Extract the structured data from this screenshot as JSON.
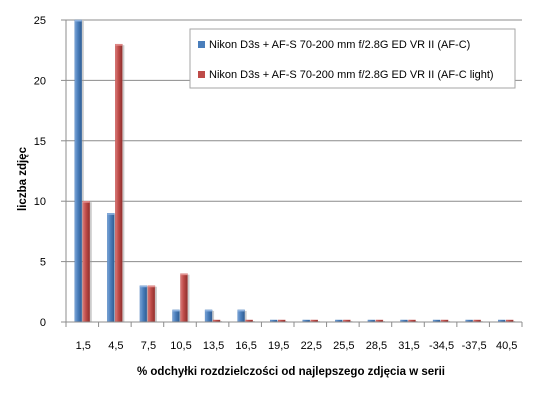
{
  "chart_data": {
    "type": "bar",
    "xlabel": "% odchyłki  rozdzielczości  od najlepszego  zdjęcia  w serii",
    "ylabel": "liczba zdjęc",
    "categories": [
      "1,5",
      "4,5",
      "7,5",
      "10,5",
      "13,5",
      "16,5",
      "19,5",
      "22,5",
      "25,5",
      "28,5",
      "31,5",
      "-34,5",
      "-37,5",
      "40,5"
    ],
    "ylim": [
      0,
      25
    ],
    "yticks": [
      "0",
      "5",
      "10",
      "15",
      "20",
      "25"
    ],
    "grid": true,
    "legend_position": "top-right",
    "series": [
      {
        "name": "Nikon D3s + AF-S 70-200 mm f/2.8G ED VR II (AF-C)",
        "color": "#4a7ebb",
        "values": [
          25,
          9,
          3,
          1,
          1,
          1,
          0,
          0,
          0,
          0,
          0,
          0,
          0,
          0
        ]
      },
      {
        "name": "Nikon D3s + AF-S 70-200 mm f/2.8G ED VR II (AF-C light)",
        "color": "#be4b48",
        "values": [
          10,
          23,
          3,
          4,
          0,
          0,
          0,
          0,
          0,
          0,
          0,
          0,
          0,
          0
        ]
      }
    ]
  }
}
